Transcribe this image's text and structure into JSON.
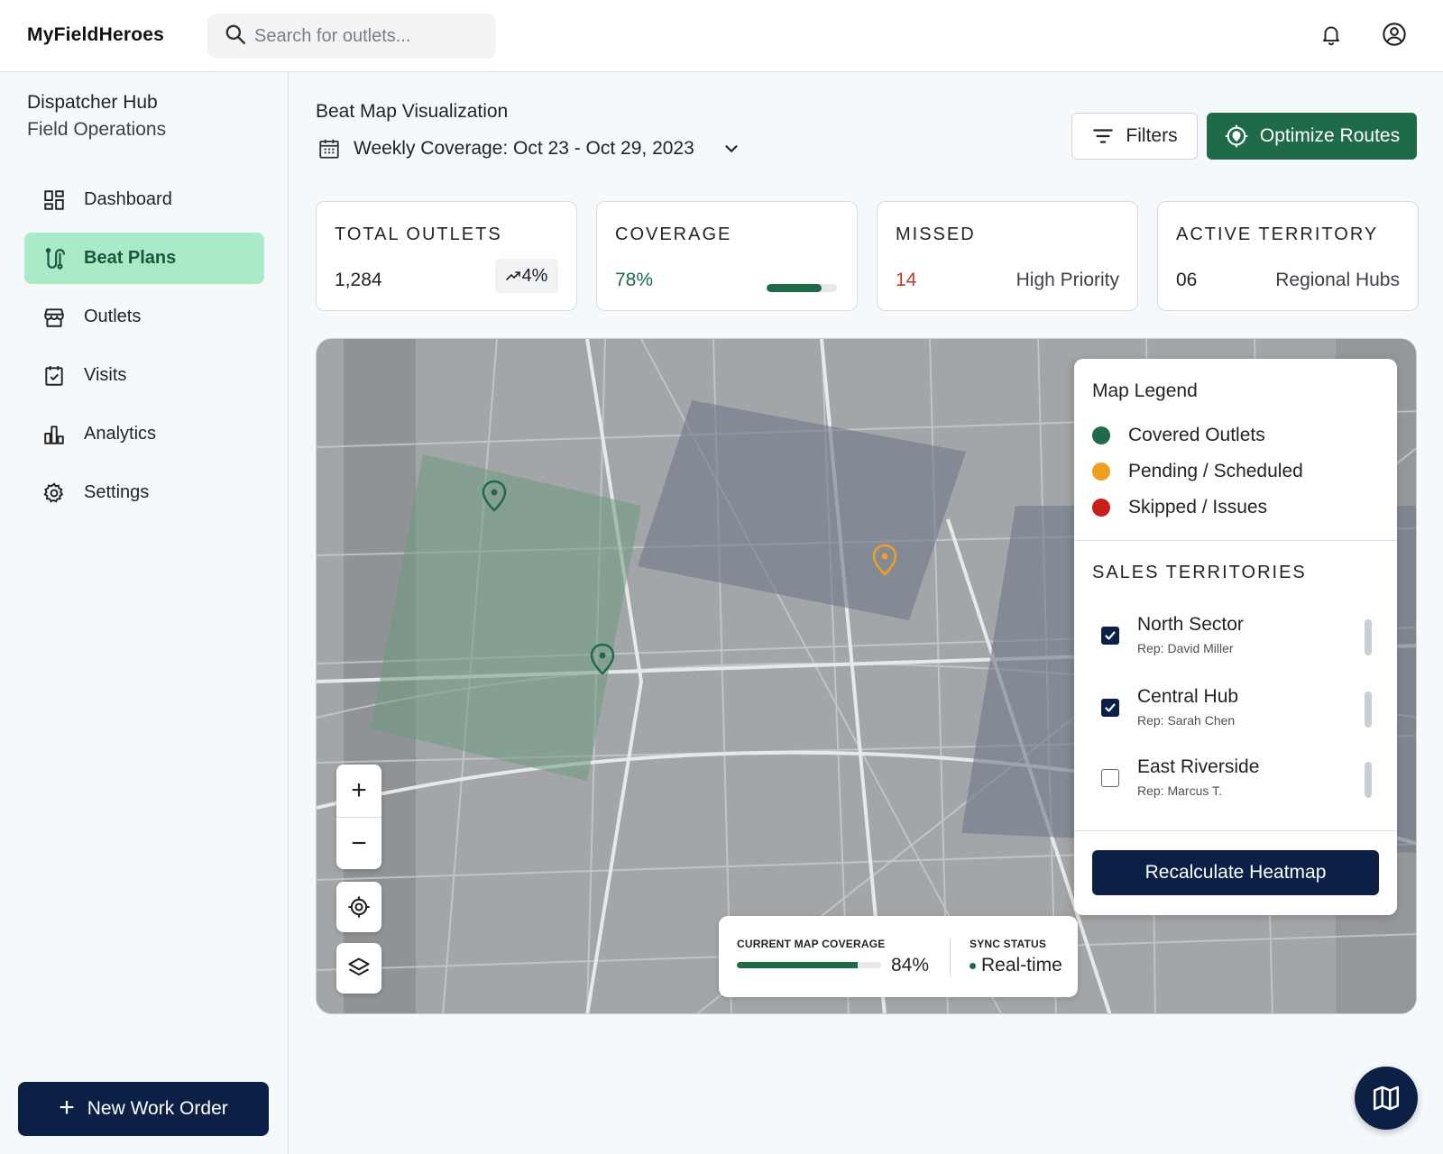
{
  "app": {
    "brand": "MyFieldHeroes"
  },
  "search": {
    "placeholder": "Search for outlets..."
  },
  "icons": {
    "search": "search-icon",
    "bell": "bell-icon",
    "account": "account-circle-icon",
    "calendar": "calendar-icon",
    "chevron": "chevron-down-icon",
    "filter": "filter-lines-icon",
    "optimize": "target-pin-icon",
    "map": "map-icon"
  },
  "sidebar": {
    "title": "Dispatcher Hub",
    "subtitle": "Field Operations",
    "items": [
      {
        "label": "Dashboard",
        "icon": "dashboard-grid-icon",
        "active": false
      },
      {
        "label": "Beat Plans",
        "icon": "route-icon",
        "active": true
      },
      {
        "label": "Outlets",
        "icon": "storefront-icon",
        "active": false
      },
      {
        "label": "Visits",
        "icon": "calendar-check-icon",
        "active": false
      },
      {
        "label": "Analytics",
        "icon": "bar-chart-icon",
        "active": false
      },
      {
        "label": "Settings",
        "icon": "gear-icon",
        "active": false
      }
    ],
    "new_order": "New Work Order"
  },
  "header": {
    "title": "Beat Map Visualization",
    "date_range": "Weekly Coverage: Oct 23 - Oct 29, 2023",
    "filters_label": "Filters",
    "optimize_label": "Optimize Routes"
  },
  "stats": {
    "total": {
      "label": "TOTAL OUTLETS",
      "value": "1,284",
      "trend": "4%"
    },
    "coverage": {
      "label": "COVERAGE",
      "value": "78%",
      "fraction": 0.78
    },
    "missed": {
      "label": "MISSED",
      "value": "14",
      "note": "High Priority"
    },
    "territory": {
      "label": "ACTIVE TERRITORY",
      "value": "06",
      "note": "Regional Hubs"
    }
  },
  "map": {
    "zoom_in": "+",
    "zoom_out": "−",
    "current_coverage_label": "CURRENT MAP COVERAGE",
    "current_coverage_value": "84%",
    "current_coverage_fraction": 0.84,
    "sync_label": "SYNC STATUS",
    "sync_value": "Real-time"
  },
  "legend": {
    "title": "Map Legend",
    "items": [
      {
        "label": "Covered Outlets",
        "color": "#1f6a48"
      },
      {
        "label": "Pending / Scheduled",
        "color": "#f0a020"
      },
      {
        "label": "Skipped / Issues",
        "color": "#c81e1e"
      }
    ],
    "territories_label": "SALES TERRITORIES",
    "territories": [
      {
        "name": "North Sector",
        "rep": "Rep: David Miller",
        "checked": true
      },
      {
        "name": "Central Hub",
        "rep": "Rep: Sarah Chen",
        "checked": true
      },
      {
        "name": "East Riverside",
        "rep": "Rep: Marcus T.",
        "checked": false
      }
    ],
    "recalc_label": "Recalculate Heatmap"
  },
  "colors": {
    "primary_green": "#1f6a48",
    "navy": "#0b2044",
    "active_nav_bg": "#a9ebc9",
    "missed_red": "#c0392b",
    "pending_orange": "#f0a020"
  }
}
